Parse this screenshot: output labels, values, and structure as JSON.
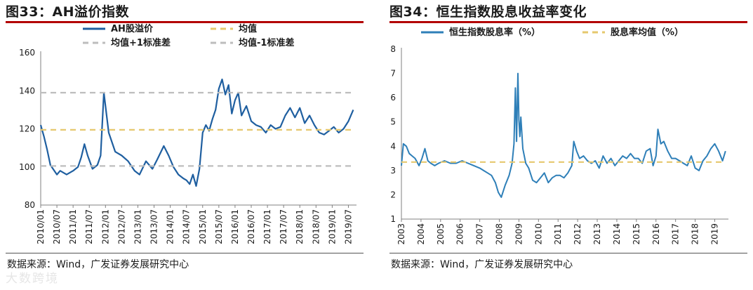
{
  "left_panel": {
    "title": "图33：AH溢价指数",
    "source": "数据来源：Wind，广发证券发展研究中心",
    "colors": {
      "rule": "#b30000",
      "series": "#1f5fa0",
      "mean": "#e6c86e",
      "band": "#bdbdbd"
    }
  },
  "right_panel": {
    "title": "图34：恒生指数股息收益率变化",
    "source": "数据来源：Wind，广发证券发展研究中心",
    "colors": {
      "rule": "#b30000",
      "series": "#2e7fb8",
      "mean": "#e6c86e"
    }
  },
  "watermark": "大数跨境",
  "chart_data": [
    {
      "type": "line",
      "title": "AH溢价指数",
      "legend": [
        "AH股溢价",
        "均值",
        "均值+1标准差",
        "均值-1标准差"
      ],
      "ylim": [
        80,
        160
      ],
      "yticks": [
        80,
        100,
        120,
        140,
        160
      ],
      "xticks": [
        "2010/01",
        "2010/07",
        "2011/01",
        "2011/07",
        "2012/01",
        "2012/07",
        "2013/01",
        "2013/07",
        "2014/01",
        "2014/07",
        "2015/01",
        "2015/07",
        "2016/01",
        "2016/07",
        "2017/01",
        "2017/07",
        "2018/01",
        "2018/07",
        "2019/01",
        "2019/07"
      ],
      "series": [
        {
          "name": "AH股溢价",
          "x": [
            2010.0,
            2010.1,
            2010.2,
            2010.3,
            2010.5,
            2010.6,
            2010.8,
            2011.0,
            2011.15,
            2011.25,
            2011.35,
            2011.45,
            2011.6,
            2011.75,
            2011.85,
            2011.95,
            2012.1,
            2012.3,
            2012.5,
            2012.7,
            2012.9,
            2013.05,
            2013.25,
            2013.45,
            2013.6,
            2013.8,
            2013.95,
            2014.1,
            2014.25,
            2014.4,
            2014.5,
            2014.6,
            2014.7,
            2014.8,
            2014.9,
            2015.0,
            2015.1,
            2015.2,
            2015.3,
            2015.4,
            2015.5,
            2015.6,
            2015.7,
            2015.8,
            2015.9,
            2016.0,
            2016.1,
            2016.2,
            2016.35,
            2016.5,
            2016.65,
            2016.8,
            2016.95,
            2017.1,
            2017.25,
            2017.4,
            2017.55,
            2017.7,
            2017.85,
            2018.0,
            2018.15,
            2018.3,
            2018.45,
            2018.6,
            2018.75,
            2018.9,
            2019.05,
            2019.2,
            2019.35,
            2019.5,
            2019.65
          ],
          "y": [
            122,
            116,
            109,
            101,
            96,
            98,
            96,
            98,
            100,
            105,
            112,
            106,
            99,
            101,
            106,
            139,
            118,
            108,
            106,
            103,
            98,
            96,
            103,
            99,
            104,
            111,
            106,
            100,
            96,
            94,
            93,
            91,
            96,
            90,
            99,
            118,
            122,
            119,
            125,
            130,
            141,
            146,
            138,
            143,
            128,
            135,
            139,
            127,
            132,
            124,
            122,
            121,
            118,
            122,
            120,
            121,
            127,
            131,
            126,
            131,
            123,
            127,
            122,
            118,
            117,
            119,
            121,
            118,
            120,
            124,
            130
          ]
        },
        {
          "name": "均值",
          "x": [
            2010.0,
            2019.65
          ],
          "y": [
            119.5,
            119.5
          ]
        },
        {
          "name": "均值+1标准差",
          "x": [
            2010.0,
            2019.65
          ],
          "y": [
            139,
            139
          ]
        },
        {
          "name": "均值-1标准差",
          "x": [
            2010.0,
            2019.65
          ],
          "y": [
            100.5,
            100.5
          ]
        }
      ]
    },
    {
      "type": "line",
      "title": "恒生指数股息收益率变化",
      "legend": [
        "恒生指数股息率（%）",
        "股息率均值（%）"
      ],
      "ylim": [
        1,
        8
      ],
      "yticks": [
        1,
        2,
        3,
        4,
        5,
        6,
        7,
        8
      ],
      "xticks": [
        "2003",
        "2004",
        "2005",
        "2006",
        "2007",
        "2008",
        "2009",
        "2010",
        "2011",
        "2012",
        "2013",
        "2014",
        "2015",
        "2016",
        "2017",
        "2018",
        "2019"
      ],
      "series": [
        {
          "name": "恒生指数股息率（%）",
          "x": [
            2003.0,
            2003.1,
            2003.25,
            2003.4,
            2003.55,
            2003.7,
            2003.9,
            2004.05,
            2004.2,
            2004.35,
            2004.5,
            2004.7,
            2004.9,
            2005.2,
            2005.5,
            2005.8,
            2006.1,
            2006.4,
            2006.7,
            2007.0,
            2007.2,
            2007.4,
            2007.6,
            2007.8,
            2007.95,
            2008.1,
            2008.3,
            2008.5,
            2008.65,
            2008.75,
            2008.82,
            2008.88,
            2008.95,
            2009.0,
            2009.05,
            2009.1,
            2009.2,
            2009.35,
            2009.5,
            2009.7,
            2009.9,
            2010.1,
            2010.3,
            2010.5,
            2010.7,
            2010.9,
            2011.1,
            2011.3,
            2011.5,
            2011.7,
            2011.8,
            2011.95,
            2012.1,
            2012.3,
            2012.5,
            2012.7,
            2012.9,
            2013.1,
            2013.3,
            2013.5,
            2013.7,
            2013.9,
            2014.1,
            2014.3,
            2014.5,
            2014.7,
            2014.9,
            2015.1,
            2015.3,
            2015.5,
            2015.7,
            2015.85,
            2016.0,
            2016.1,
            2016.25,
            2016.4,
            2016.6,
            2016.8,
            2017.0,
            2017.2,
            2017.4,
            2017.6,
            2017.8,
            2018.0,
            2018.2,
            2018.4,
            2018.6,
            2018.8,
            2019.0,
            2019.2,
            2019.4,
            2019.55
          ],
          "y": [
            3.2,
            4.1,
            4.0,
            3.7,
            3.6,
            3.5,
            3.2,
            3.5,
            3.9,
            3.4,
            3.3,
            3.2,
            3.3,
            3.4,
            3.3,
            3.3,
            3.4,
            3.3,
            3.2,
            3.1,
            3.0,
            2.9,
            2.8,
            2.5,
            2.1,
            1.9,
            2.4,
            2.8,
            3.3,
            4.1,
            6.4,
            4.2,
            7.0,
            5.1,
            4.4,
            5.2,
            3.9,
            3.3,
            3.1,
            2.6,
            2.5,
            2.7,
            2.9,
            2.5,
            2.7,
            2.8,
            2.8,
            2.7,
            2.9,
            3.2,
            4.2,
            3.8,
            3.5,
            3.6,
            3.4,
            3.3,
            3.4,
            3.1,
            3.6,
            3.3,
            3.5,
            3.2,
            3.4,
            3.6,
            3.5,
            3.7,
            3.5,
            3.5,
            3.3,
            3.8,
            3.9,
            3.2,
            3.6,
            4.7,
            4.1,
            4.2,
            3.8,
            3.5,
            3.5,
            3.4,
            3.3,
            3.2,
            3.6,
            3.1,
            3.0,
            3.4,
            3.6,
            3.9,
            4.1,
            3.8,
            3.4,
            3.8
          ]
        },
        {
          "name": "股息率均值（%）",
          "x": [
            2003.0,
            2019.55
          ],
          "y": [
            3.35,
            3.35
          ]
        }
      ]
    }
  ]
}
